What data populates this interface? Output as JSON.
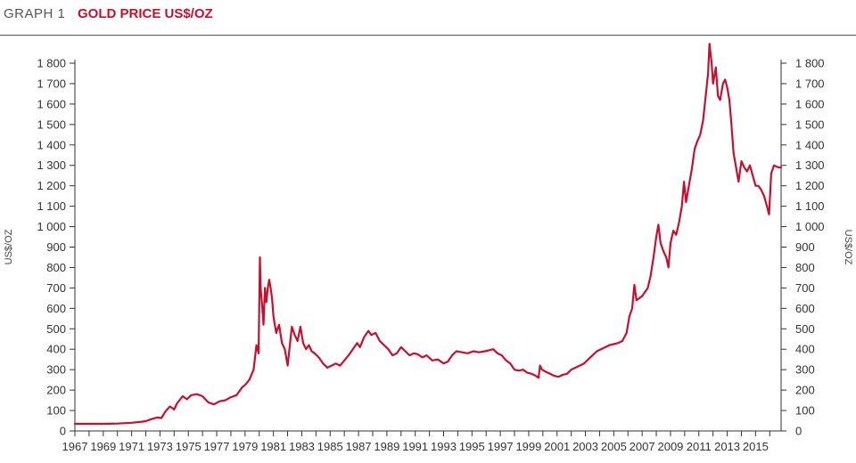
{
  "header": {
    "graph_label": "GRAPH 1",
    "title": "GOLD PRICE US$/OZ",
    "title_color": "#c8102e"
  },
  "chart_data": {
    "type": "line",
    "title": "GOLD PRICE US$/OZ",
    "xlabel": "",
    "ylabel": "US$/OZ",
    "ylabel_right": "US$/OZ",
    "xlim": [
      1967,
      2016.8
    ],
    "ylim": [
      0,
      1800
    ],
    "grid": false,
    "line_color": "#c8102e",
    "y_ticks": [
      0,
      100,
      200,
      300,
      400,
      500,
      600,
      700,
      800,
      900,
      1000,
      1100,
      1200,
      1300,
      1400,
      1500,
      1600,
      1700,
      1800
    ],
    "y_tick_labels": [
      "0",
      "100",
      "200",
      "300",
      "400",
      "500",
      "600",
      "700",
      "800",
      "900",
      "1 000",
      "1 100",
      "1 200",
      "1 300",
      "1 400",
      "1 500",
      "1 600",
      "1 700",
      "1 800"
    ],
    "x_ticks": [
      1967,
      1969,
      1971,
      1973,
      1975,
      1977,
      1979,
      1981,
      1983,
      1985,
      1987,
      1989,
      1991,
      1993,
      1995,
      1997,
      1999,
      2001,
      2003,
      2005,
      2007,
      2009,
      2011,
      2013,
      2015
    ],
    "x_tick_labels": [
      "1967",
      "1969",
      "1971",
      "1973",
      "1975",
      "1977",
      "1979",
      "1981",
      "1983",
      "1985",
      "1987",
      "1989",
      "1991",
      "1993",
      "1995",
      "1997",
      "1999",
      "2001",
      "2003",
      "2005",
      "2007",
      "2009",
      "2011",
      "2013",
      "2015"
    ],
    "series": [
      {
        "x": [
          1967.0,
          1968.0,
          1969.0,
          1970.0,
          1971.0,
          1971.6,
          1972.0,
          1972.4,
          1972.8,
          1973.1,
          1973.4,
          1973.7,
          1974.0,
          1974.2,
          1974.6,
          1974.9,
          1975.2,
          1975.6,
          1976.0,
          1976.4,
          1976.8,
          1977.2,
          1977.6,
          1978.0,
          1978.4,
          1978.8,
          1979.0,
          1979.3,
          1979.6,
          1979.8,
          1979.95,
          1980.05,
          1980.1,
          1980.2,
          1980.3,
          1980.4,
          1980.5,
          1980.6,
          1980.7,
          1980.8,
          1980.9,
          1981.0,
          1981.1,
          1981.2,
          1981.4,
          1981.6,
          1981.8,
          1982.0,
          1982.3,
          1982.5,
          1982.7,
          1982.9,
          1983.1,
          1983.3,
          1983.5,
          1983.7,
          1983.9,
          1984.2,
          1984.5,
          1984.8,
          1985.1,
          1985.4,
          1985.7,
          1986.0,
          1986.3,
          1986.6,
          1986.9,
          1987.1,
          1987.4,
          1987.7,
          1987.9,
          1988.2,
          1988.5,
          1988.8,
          1989.1,
          1989.4,
          1989.7,
          1990.0,
          1990.3,
          1990.6,
          1990.9,
          1991.2,
          1991.5,
          1991.8,
          1992.2,
          1992.6,
          1993.0,
          1993.3,
          1993.6,
          1993.9,
          1994.3,
          1994.7,
          1995.1,
          1995.5,
          1995.9,
          1996.2,
          1996.5,
          1996.8,
          1997.1,
          1997.4,
          1997.7,
          1998.0,
          1998.3,
          1998.6,
          1998.9,
          1999.2,
          1999.5,
          1999.7,
          1999.8,
          1999.95,
          2000.2,
          2000.5,
          2000.8,
          2001.1,
          2001.4,
          2001.7,
          2002.0,
          2002.3,
          2002.6,
          2002.9,
          2003.2,
          2003.5,
          2003.8,
          2004.1,
          2004.4,
          2004.7,
          2005.0,
          2005.3,
          2005.6,
          2005.9,
          2006.1,
          2006.3,
          2006.45,
          2006.6,
          2006.8,
          2007.0,
          2007.2,
          2007.4,
          2007.6,
          2007.8,
          2008.0,
          2008.15,
          2008.3,
          2008.5,
          2008.7,
          2008.85,
          2009.0,
          2009.2,
          2009.4,
          2009.6,
          2009.8,
          2009.95,
          2010.1,
          2010.3,
          2010.5,
          2010.7,
          2010.9,
          2011.1,
          2011.3,
          2011.5,
          2011.65,
          2011.75,
          2011.9,
          2012.0,
          2012.2,
          2012.35,
          2012.5,
          2012.7,
          2012.85,
          2013.0,
          2013.15,
          2013.3,
          2013.45,
          2013.6,
          2013.8,
          2014.0,
          2014.2,
          2014.4,
          2014.6,
          2014.8,
          2015.0,
          2015.2,
          2015.4,
          2015.6,
          2015.8,
          2015.95,
          2016.1,
          2016.3,
          2016.6,
          2016.8
        ],
        "values": [
          35,
          35,
          35,
          36,
          40,
          44,
          48,
          58,
          66,
          63,
          97,
          120,
          105,
          135,
          170,
          155,
          175,
          180,
          170,
          140,
          130,
          145,
          150,
          165,
          175,
          215,
          225,
          250,
          300,
          420,
          380,
          850,
          700,
          620,
          520,
          700,
          630,
          700,
          740,
          700,
          650,
          560,
          520,
          480,
          520,
          430,
          400,
          320,
          510,
          470,
          440,
          510,
          430,
          400,
          420,
          390,
          380,
          360,
          330,
          310,
          320,
          330,
          320,
          345,
          370,
          400,
          430,
          410,
          460,
          490,
          470,
          480,
          440,
          420,
          400,
          370,
          380,
          410,
          390,
          370,
          380,
          375,
          360,
          370,
          345,
          350,
          330,
          340,
          370,
          390,
          385,
          380,
          390,
          385,
          390,
          395,
          400,
          380,
          370,
          345,
          330,
          300,
          295,
          300,
          285,
          280,
          270,
          260,
          320,
          300,
          290,
          280,
          270,
          265,
          275,
          280,
          300,
          310,
          320,
          330,
          350,
          370,
          390,
          400,
          410,
          420,
          425,
          430,
          440,
          480,
          560,
          600,
          715,
          640,
          650,
          660,
          680,
          700,
          760,
          850,
          950,
          1010,
          920,
          880,
          850,
          800,
          920,
          980,
          960,
          1020,
          1100,
          1220,
          1120,
          1200,
          1280,
          1380,
          1420,
          1450,
          1520,
          1650,
          1750,
          1895,
          1800,
          1700,
          1780,
          1640,
          1620,
          1700,
          1720,
          1680,
          1620,
          1500,
          1360,
          1300,
          1220,
          1320,
          1290,
          1270,
          1300,
          1250,
          1200,
          1200,
          1180,
          1150,
          1100,
          1060,
          1260,
          1300,
          1290,
          1290
        ]
      }
    ]
  }
}
